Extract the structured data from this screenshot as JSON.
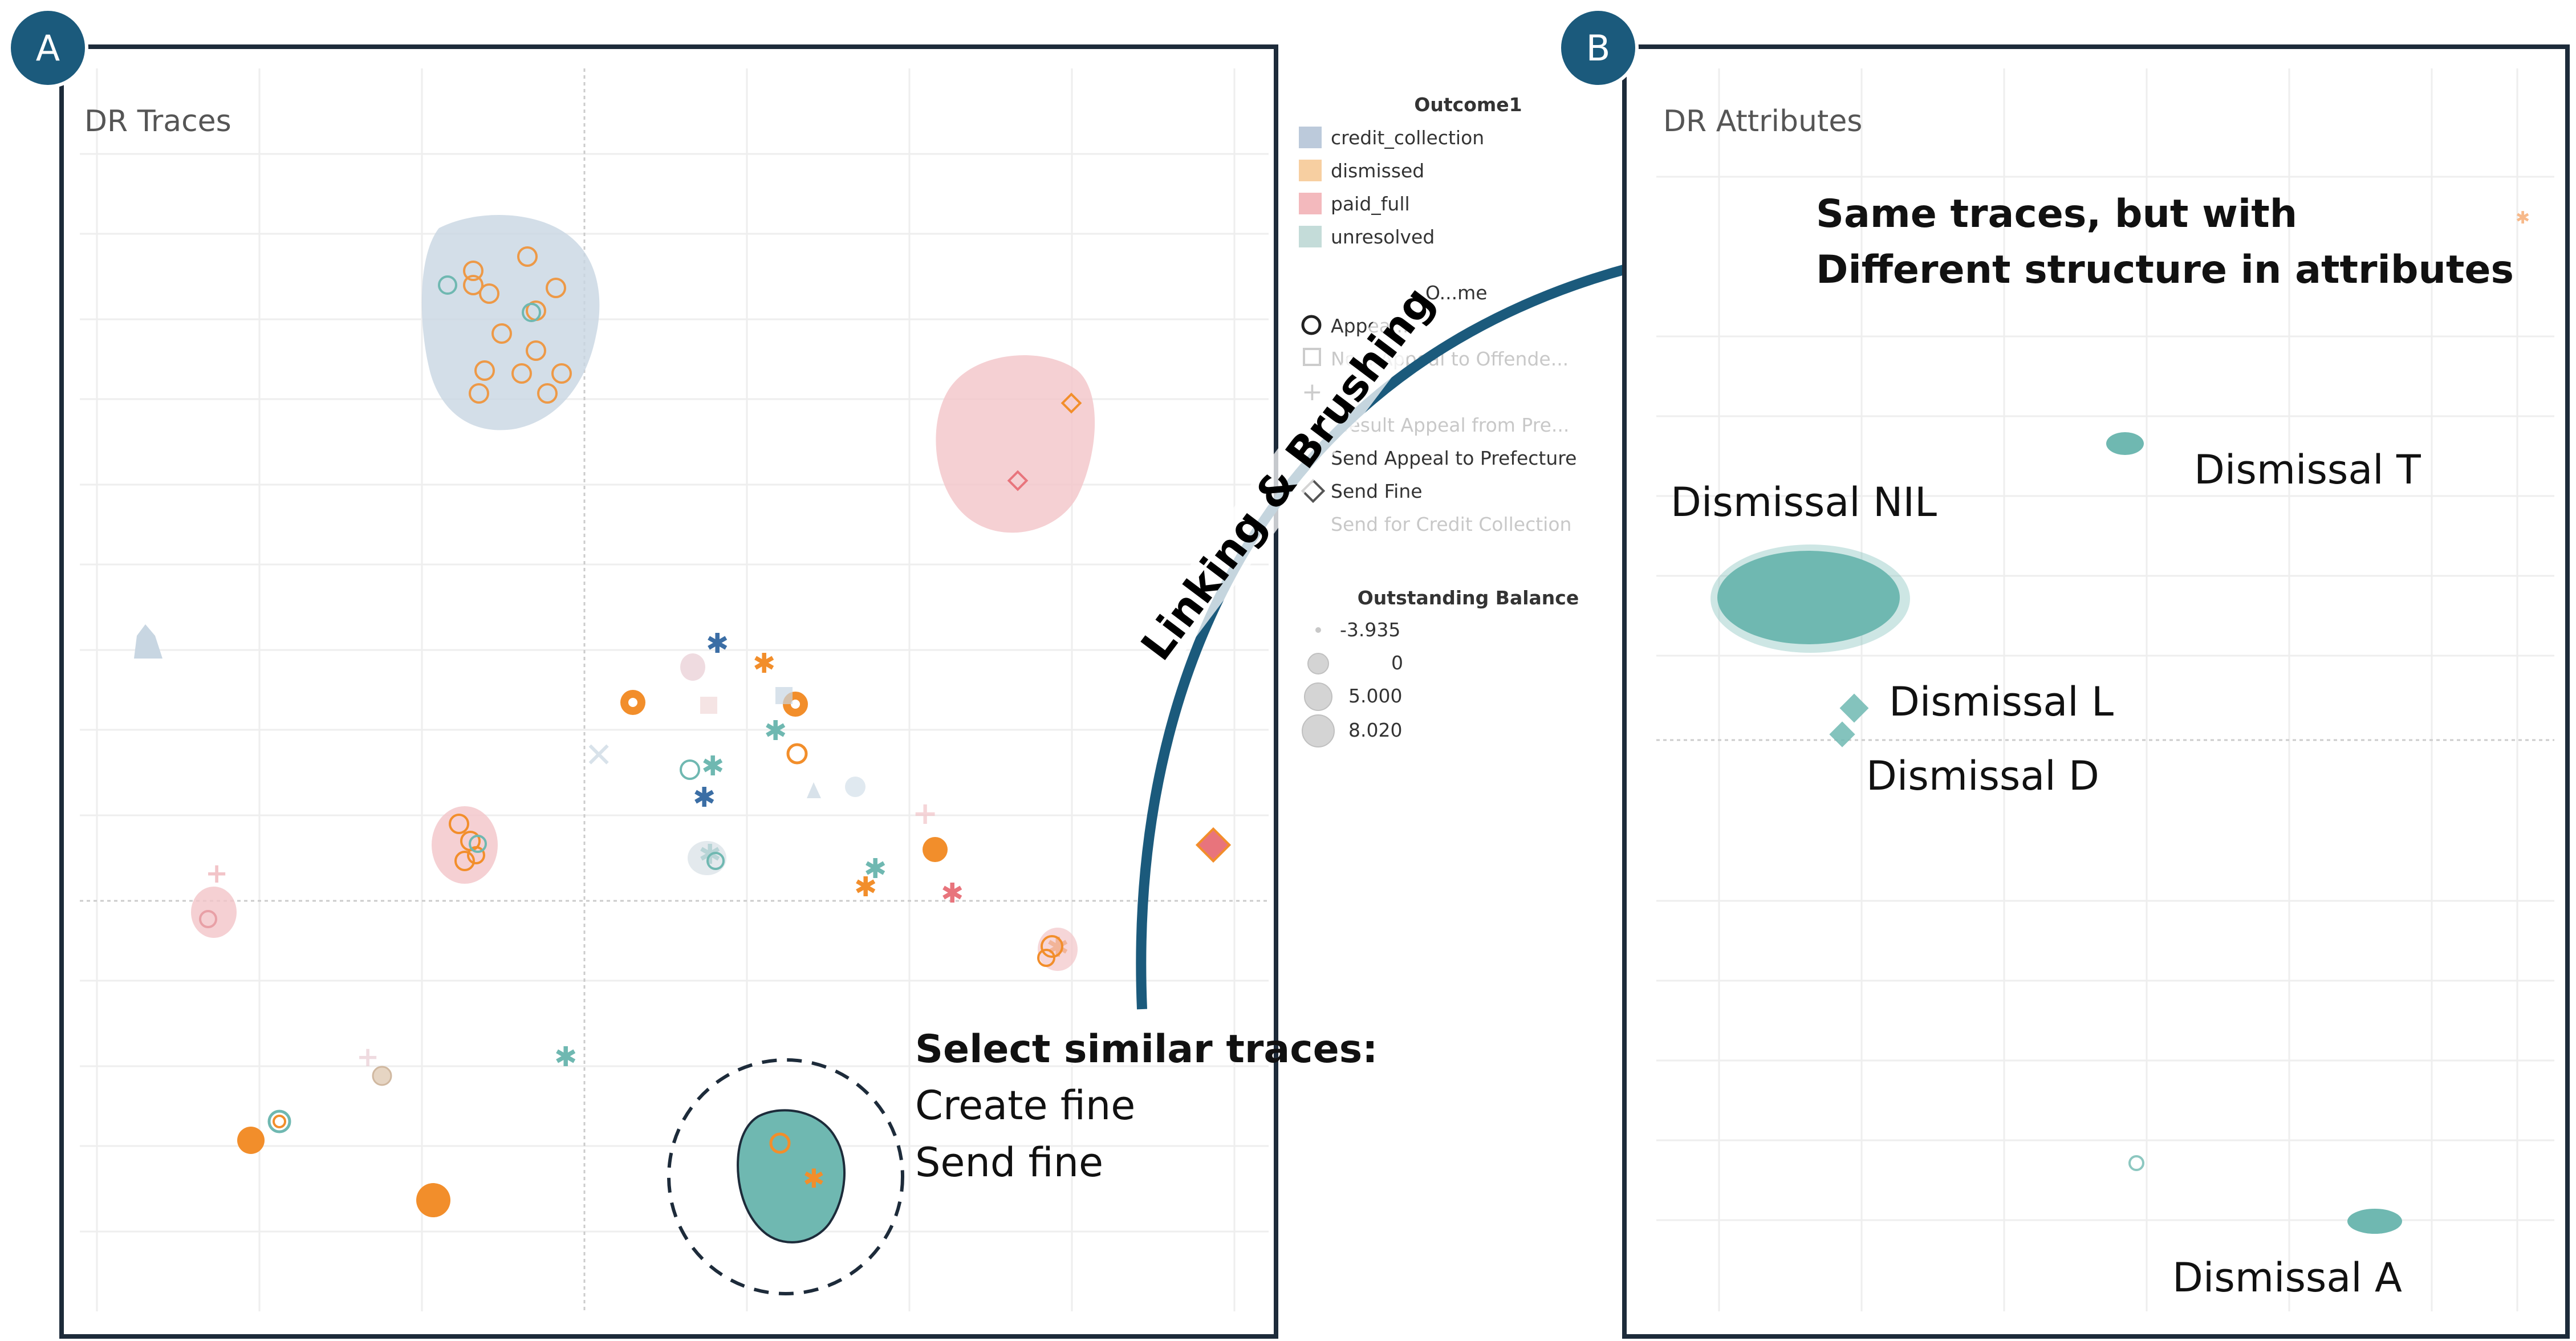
{
  "panel_a": {
    "badge": "A",
    "title": "DR Traces",
    "callout": {
      "heading": "Select similar traces:",
      "line1": "Create fine",
      "line2": "Send fine"
    }
  },
  "panel_b": {
    "badge": "B",
    "title": "DR Attributes",
    "callout": {
      "line1": "Same traces, but with",
      "line2": "Different structure in attributes"
    },
    "cluster_labels": {
      "t": "Dismissal T",
      "nil": "Dismissal NIL",
      "l": "Dismissal L",
      "d": "Dismissal D",
      "a": "Dismissal A"
    }
  },
  "link_label": "Linking & Brushing",
  "legend": {
    "outcome": {
      "title": "Outcome1",
      "items": [
        {
          "label": "credit_collection",
          "color": "#bccadb"
        },
        {
          "label": "dismissed",
          "color": "#f7cfa1"
        },
        {
          "label": "paid_full",
          "color": "#f3b9bd"
        },
        {
          "label": "unresolved",
          "color": "#c4dcd9"
        }
      ]
    },
    "shape": {
      "title": "O...me",
      "items": [
        {
          "label": "Appea...",
          "icon": "circle-icon",
          "faded": false
        },
        {
          "label": "No... Appeal to Offende...",
          "icon": "square-icon",
          "faded": true
        },
        {
          "label": "",
          "icon": "plus-icon",
          "faded": true
        },
        {
          "label": "...esult Appeal from Pre...",
          "icon": "",
          "faded": true
        },
        {
          "label": "Send Appeal to Prefecture",
          "icon": "",
          "faded": false
        },
        {
          "label": "Send Fine",
          "icon": "diamond-icon",
          "faded": false
        },
        {
          "label": "Send for Credit Collection",
          "icon": "",
          "faded": true
        }
      ]
    },
    "size": {
      "title": "Outstanding Balance",
      "items": [
        "-3.935",
        "0",
        "5.000",
        "8.020"
      ]
    }
  },
  "colors": {
    "frame": "#1d2b3a",
    "badge": "#1b5a7c",
    "arrow": "#1b5a7c",
    "teal": "#6fb8b1",
    "orange": "#f28e2b",
    "blue_gray": "#c8d6e2",
    "pink": "#f2c4c8"
  }
}
